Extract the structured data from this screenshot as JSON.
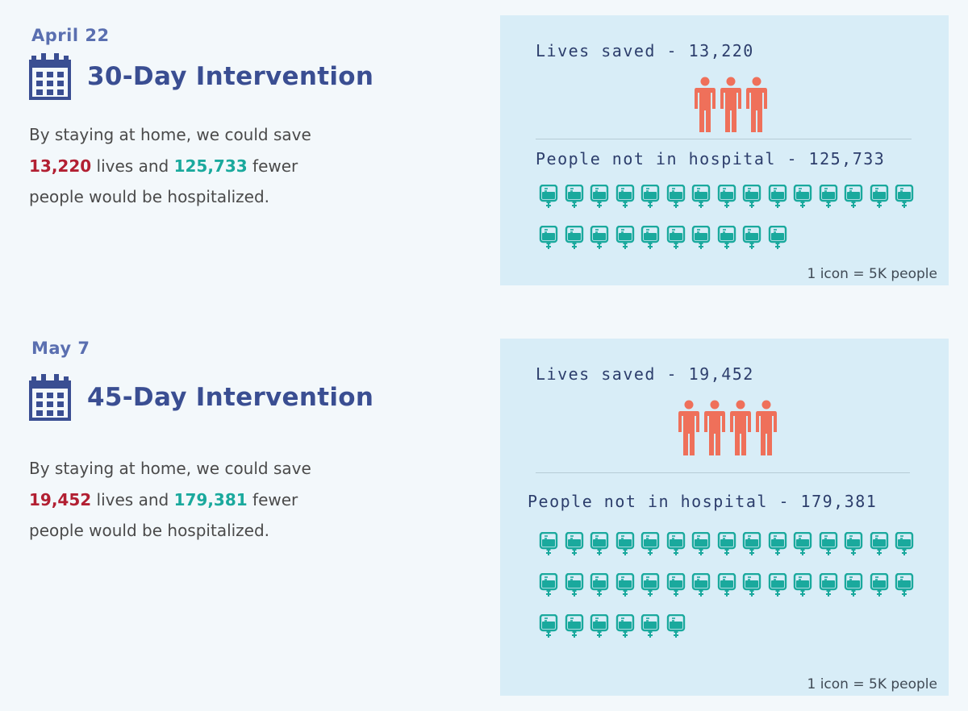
{
  "sections": [
    {
      "date": "April 22",
      "title": "30-Day Intervention",
      "desc_intro": "By staying at home, we could save",
      "lives": "13,220",
      "lives_word": "lives and",
      "hospital": "125,733",
      "fewer_word": "fewer",
      "desc_end": "people would be hospitalized.",
      "lives_label": "Lives saved - 13,220",
      "hospital_label": "People not in hospital - 125,733",
      "person_icons": 3,
      "drip_icons": 25,
      "note": "1 icon = 5K people"
    },
    {
      "date": "May 7",
      "title": "45-Day Intervention",
      "desc_intro": "By staying at home, we could save",
      "lives": "19,452",
      "lives_word": "lives and",
      "hospital": "179,381",
      "fewer_word": "fewer",
      "desc_end": "people would be hospitalized.",
      "lives_label": "Lives saved - 19,452",
      "hospital_label": "People not in hospital - 179,381",
      "person_icons": 4,
      "drip_icons": 36,
      "note": "1 icon = 5K people"
    }
  ],
  "colors": {
    "title": "#3a4e92",
    "lives_red": "#b21f32",
    "hospital_teal": "#1aa99d",
    "person_icon": "#ef705a",
    "drip_icon": "#1aa99d",
    "panel_bg": "#d8edf7"
  },
  "icons": {
    "calendar": "calendar-icon",
    "person": "person-icon",
    "iv_bag": "iv-bag-icon"
  }
}
